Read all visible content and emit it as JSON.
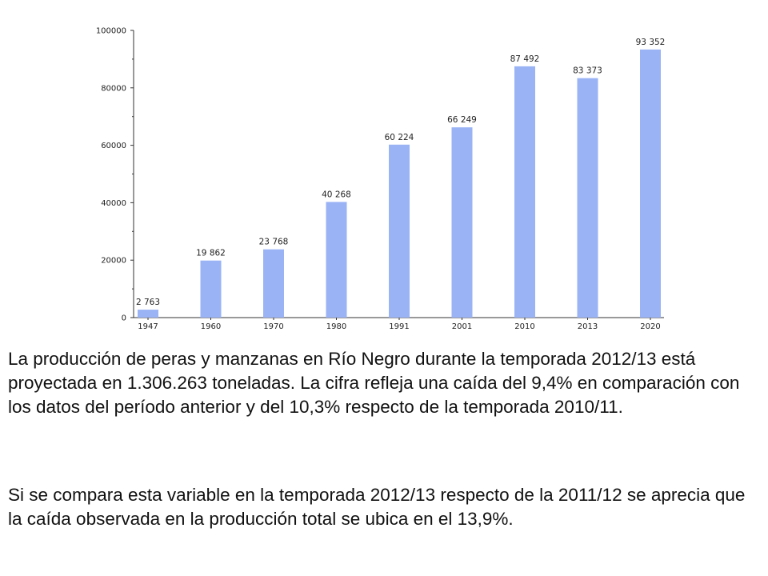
{
  "chart_data": {
    "type": "bar",
    "categories": [
      "1947",
      "1960",
      "1970",
      "1980",
      "1991",
      "2001",
      "2010",
      "2013",
      "2020"
    ],
    "values": [
      2763,
      19862,
      23768,
      40268,
      60224,
      66249,
      87492,
      83373,
      93352
    ],
    "value_labels": [
      "2 763",
      "19 862",
      "23 768",
      "40 268",
      "60 224",
      "66 249",
      "87 492",
      "83 373",
      "93 352"
    ],
    "y_ticks": [
      0,
      20000,
      40000,
      60000,
      80000,
      100000
    ],
    "y_tick_labels": [
      "0",
      "20000",
      "40000",
      "60000",
      "80000",
      "100000"
    ],
    "ylim": [
      0,
      100000
    ],
    "bar_color": "#99b3f5",
    "title": "",
    "xlabel": "",
    "ylabel": "",
    "grid": false
  },
  "text": {
    "paragraph1": "La producción de peras y manzanas en Río Negro durante la temporada 2012/13 está proyectada en 1.306.263 toneladas. La cifra refleja una caída del 9,4% en comparación con los datos del período anterior y del 10,3% respecto de la temporada 2010/11.",
    "paragraph2": "Si se compara esta variable en la temporada 2012/13 respecto de la 2011/12 se aprecia que la caída observada en la producción total se ubica en el 13,9%."
  }
}
